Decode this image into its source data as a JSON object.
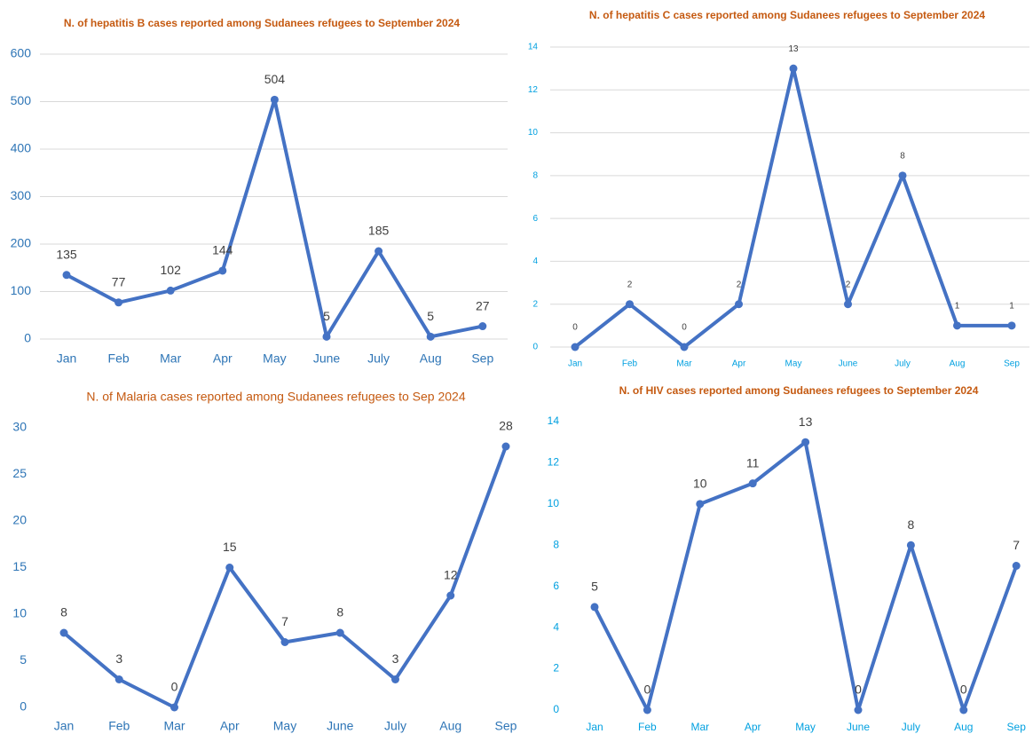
{
  "chart_data": [
    {
      "type": "line",
      "title": "N. of hepatitis B cases reported among Sudanees refugees to September 2024",
      "categories": [
        "Jan",
        "Feb",
        "Mar",
        "Apr",
        "May",
        "June",
        "July",
        "Aug",
        "Sep"
      ],
      "values": [
        135,
        77,
        102,
        144,
        504,
        5,
        185,
        5,
        27
      ],
      "color": "#4472c4",
      "ylim": [
        0,
        600
      ],
      "yticks": [
        0,
        100,
        200,
        300,
        400,
        500,
        600
      ],
      "grid": true
    },
    {
      "type": "line",
      "title": "N. of hepatitis C cases reported among Sudanees refugees to September 2024",
      "categories": [
        "Jan",
        "Feb",
        "Mar",
        "Apr",
        "May",
        "June",
        "July",
        "Aug",
        "Sep"
      ],
      "values": [
        0,
        2,
        0,
        2,
        13,
        2,
        8,
        1,
        1
      ],
      "color": "#4472c4",
      "ylim": [
        0,
        14
      ],
      "yticks": [
        0,
        2,
        4,
        6,
        8,
        10,
        12,
        14
      ],
      "grid": true
    },
    {
      "type": "line",
      "title": "N. of Malaria cases reported among Sudanees refugees to Sep 2024",
      "categories": [
        "Jan",
        "Feb",
        "Mar",
        "Apr",
        "May",
        "June",
        "July",
        "Aug",
        "Sep"
      ],
      "values": [
        8,
        3,
        0,
        15,
        7,
        8,
        3,
        12,
        28
      ],
      "color": "#4472c4",
      "ylim": [
        0,
        30
      ],
      "yticks": [
        0,
        5,
        10,
        15,
        20,
        25,
        30
      ],
      "grid": false
    },
    {
      "type": "line",
      "title": "N. of HIV cases reported among Sudanees refugees to September 2024",
      "categories": [
        "Jan",
        "Feb",
        "Mar",
        "Apr",
        "May",
        "June",
        "July",
        "Aug",
        "Sep"
      ],
      "values": [
        5,
        0,
        10,
        11,
        13,
        0,
        8,
        0,
        7
      ],
      "color": "#4472c4",
      "ylim": [
        0,
        14
      ],
      "yticks": [
        0,
        2,
        4,
        6,
        8,
        10,
        12,
        14
      ],
      "grid": false
    }
  ]
}
